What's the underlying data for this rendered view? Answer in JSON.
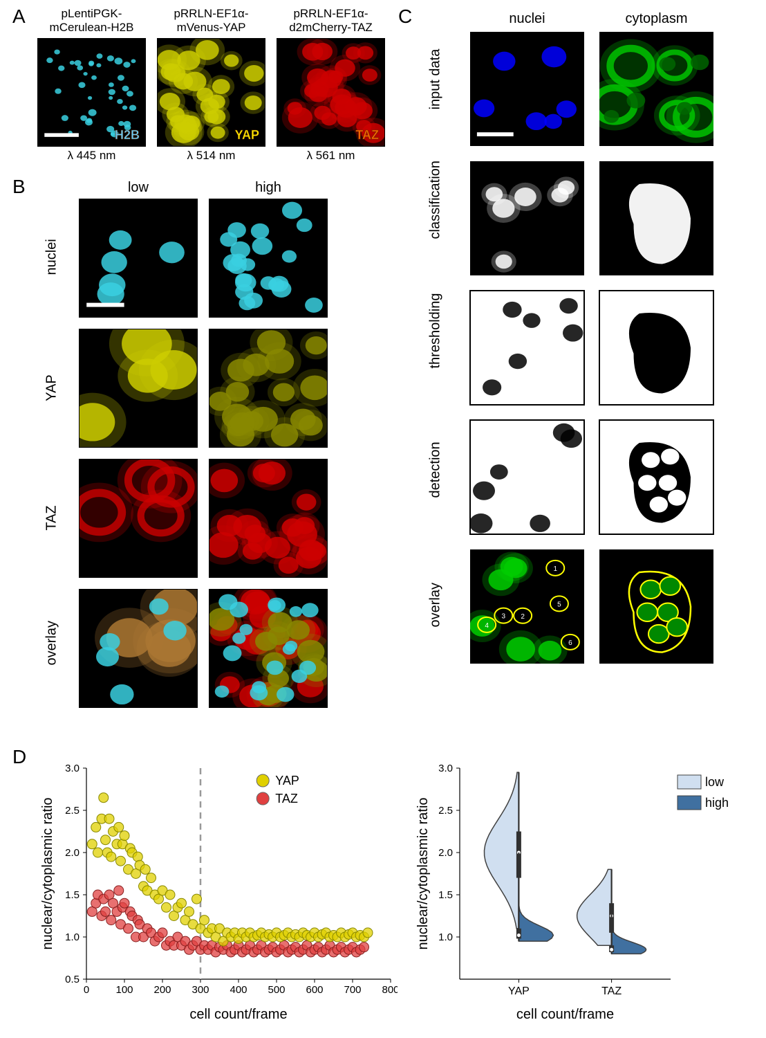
{
  "labels": {
    "A": "A",
    "B": "B",
    "C": "C",
    "D": "D"
  },
  "panelA": {
    "images": [
      {
        "title": "pLentiPGK-\nmCerulean-H2B",
        "wavelength": "λ 445 nm",
        "tag": "H2B",
        "bg": "#000000",
        "fg": "#3ad0e0",
        "type": "nuclei-sparse"
      },
      {
        "title": "pRRLN-EF1α-\nmVenus-YAP",
        "wavelength": "λ 514 nm",
        "tag": "YAP",
        "bg": "#000000",
        "fg": "#cccc00",
        "type": "cells-dense"
      },
      {
        "title": "pRRLN-EF1α-\nd2mCherry-TAZ",
        "wavelength": "λ  561 nm",
        "tag": "TAZ",
        "bg": "#000000",
        "fg": "#cc0000",
        "type": "cells-dense"
      }
    ]
  },
  "panelB": {
    "colHeaders": [
      "low",
      "high"
    ],
    "rows": [
      {
        "label": "nuclei",
        "low": {
          "bg": "#000",
          "fg": "#3ad0e0",
          "type": "nuclei-few"
        },
        "high": {
          "bg": "#000",
          "fg": "#3ad0e0",
          "type": "nuclei-many"
        }
      },
      {
        "label": "YAP",
        "low": {
          "bg": "#000",
          "fg": "#cccc00",
          "type": "cells-few"
        },
        "high": {
          "bg": "#000",
          "fg": "#888800",
          "type": "cells-many"
        }
      },
      {
        "label": "TAZ",
        "low": {
          "bg": "#000",
          "fg": "#cc0000",
          "type": "cells-few-ring"
        },
        "high": {
          "bg": "#000",
          "fg": "#cc0000",
          "type": "cells-many"
        }
      },
      {
        "label": "overlay",
        "low": {
          "bg": "#000",
          "fg": "#aa7733",
          "type": "overlay-few"
        },
        "high": {
          "bg": "#000",
          "fg": "#3ad0e0",
          "type": "overlay-many"
        }
      }
    ]
  },
  "panelC": {
    "colHeaders": [
      "nuclei",
      "cytoplasm"
    ],
    "rows": [
      {
        "label": "input data",
        "nuc": {
          "bg": "#000",
          "fg": "#0000ff",
          "type": "nuclei-blue"
        },
        "cyt": {
          "bg": "#000",
          "fg": "#00cc00",
          "type": "cyto-green"
        }
      },
      {
        "label": "classification",
        "nuc": {
          "bg": "#000",
          "fg": "#ffffff",
          "type": "nuclei-white"
        },
        "cyt": {
          "bg": "#000",
          "fg": "#ffffff",
          "type": "cyto-white"
        }
      },
      {
        "label": "thresholding",
        "nuc": {
          "bg": "#fff",
          "fg": "#000000",
          "type": "nuclei-black-on-white",
          "border": true
        },
        "cyt": {
          "bg": "#fff",
          "fg": "#000000",
          "type": "cyto-black-on-white",
          "border": true
        }
      },
      {
        "label": "detection",
        "nuc": {
          "bg": "#fff",
          "fg": "#000000",
          "type": "nuclei-black-on-white",
          "border": true
        },
        "cyt": {
          "bg": "#fff",
          "fg": "#000000",
          "type": "cyto-detection",
          "border": true
        }
      },
      {
        "label": "overlay",
        "nuc": {
          "bg": "#000",
          "fg": "#00cc00",
          "type": "overlay-nuc"
        },
        "cyt": {
          "bg": "#000",
          "fg": "#00cc00",
          "type": "overlay-cyt"
        }
      }
    ]
  },
  "panelD": {
    "scatter": {
      "xlabel": "cell count/frame",
      "ylabel": "nuclear/cytoplasmic ratio",
      "xlim": [
        0,
        800
      ],
      "ylim": [
        0.5,
        3.0
      ],
      "xticks": [
        0,
        100,
        200,
        300,
        400,
        500,
        600,
        700,
        800
      ],
      "yticks": [
        0.5,
        1.0,
        1.5,
        2.0,
        2.5,
        3.0
      ],
      "vline": 300,
      "vline_color": "#999999",
      "legend": [
        {
          "label": "YAP",
          "color": "#e0d000"
        },
        {
          "label": "TAZ",
          "color": "#e04040"
        }
      ],
      "series": {
        "YAP": {
          "color": "#e0d000",
          "edge": "#888800",
          "points": [
            [
              15,
              2.1
            ],
            [
              25,
              2.3
            ],
            [
              30,
              2.0
            ],
            [
              40,
              2.4
            ],
            [
              45,
              2.65
            ],
            [
              50,
              2.15
            ],
            [
              55,
              2.0
            ],
            [
              60,
              2.4
            ],
            [
              65,
              1.95
            ],
            [
              70,
              2.25
            ],
            [
              80,
              2.1
            ],
            [
              85,
              2.3
            ],
            [
              90,
              1.9
            ],
            [
              95,
              2.1
            ],
            [
              100,
              2.2
            ],
            [
              110,
              1.8
            ],
            [
              115,
              2.05
            ],
            [
              120,
              2.0
            ],
            [
              130,
              1.75
            ],
            [
              135,
              1.95
            ],
            [
              140,
              1.85
            ],
            [
              150,
              1.6
            ],
            [
              155,
              1.8
            ],
            [
              160,
              1.55
            ],
            [
              170,
              1.7
            ],
            [
              180,
              1.5
            ],
            [
              190,
              1.45
            ],
            [
              200,
              1.55
            ],
            [
              210,
              1.35
            ],
            [
              220,
              1.5
            ],
            [
              230,
              1.25
            ],
            [
              240,
              1.35
            ],
            [
              250,
              1.4
            ],
            [
              260,
              1.2
            ],
            [
              270,
              1.3
            ],
            [
              280,
              1.15
            ],
            [
              290,
              1.45
            ],
            [
              300,
              1.1
            ],
            [
              310,
              1.2
            ],
            [
              320,
              1.05
            ],
            [
              330,
              1.1
            ],
            [
              340,
              1.0
            ],
            [
              350,
              1.1
            ],
            [
              360,
              0.95
            ],
            [
              370,
              1.05
            ],
            [
              380,
              1.0
            ],
            [
              390,
              1.05
            ],
            [
              400,
              0.98
            ],
            [
              410,
              1.05
            ],
            [
              420,
              1.0
            ],
            [
              430,
              1.05
            ],
            [
              440,
              1.0
            ],
            [
              450,
              1.02
            ],
            [
              460,
              1.05
            ],
            [
              470,
              1.0
            ],
            [
              480,
              1.03
            ],
            [
              490,
              1.0
            ],
            [
              500,
              1.05
            ],
            [
              510,
              1.0
            ],
            [
              520,
              1.02
            ],
            [
              530,
              1.05
            ],
            [
              540,
              1.0
            ],
            [
              550,
              1.03
            ],
            [
              560,
              1.0
            ],
            [
              570,
              1.05
            ],
            [
              580,
              1.02
            ],
            [
              590,
              1.0
            ],
            [
              600,
              1.05
            ],
            [
              610,
              1.0
            ],
            [
              620,
              1.03
            ],
            [
              630,
              1.05
            ],
            [
              640,
              1.0
            ],
            [
              650,
              1.02
            ],
            [
              660,
              1.0
            ],
            [
              670,
              1.05
            ],
            [
              680,
              1.0
            ],
            [
              690,
              1.03
            ],
            [
              700,
              1.05
            ],
            [
              710,
              1.0
            ],
            [
              720,
              1.02
            ],
            [
              730,
              1.0
            ],
            [
              740,
              1.05
            ]
          ]
        },
        "TAZ": {
          "color": "#e04040",
          "edge": "#882020",
          "points": [
            [
              15,
              1.3
            ],
            [
              25,
              1.4
            ],
            [
              30,
              1.5
            ],
            [
              40,
              1.25
            ],
            [
              45,
              1.45
            ],
            [
              50,
              1.3
            ],
            [
              60,
              1.5
            ],
            [
              65,
              1.2
            ],
            [
              70,
              1.4
            ],
            [
              80,
              1.3
            ],
            [
              85,
              1.55
            ],
            [
              90,
              1.15
            ],
            [
              95,
              1.35
            ],
            [
              100,
              1.4
            ],
            [
              110,
              1.1
            ],
            [
              115,
              1.3
            ],
            [
              120,
              1.25
            ],
            [
              130,
              1.0
            ],
            [
              135,
              1.2
            ],
            [
              140,
              1.15
            ],
            [
              150,
              1.0
            ],
            [
              160,
              1.1
            ],
            [
              170,
              1.05
            ],
            [
              180,
              0.95
            ],
            [
              190,
              1.0
            ],
            [
              200,
              1.05
            ],
            [
              210,
              0.9
            ],
            [
              220,
              0.95
            ],
            [
              230,
              0.9
            ],
            [
              240,
              1.0
            ],
            [
              250,
              0.9
            ],
            [
              260,
              0.95
            ],
            [
              270,
              0.85
            ],
            [
              280,
              0.9
            ],
            [
              290,
              0.95
            ],
            [
              300,
              0.85
            ],
            [
              310,
              0.9
            ],
            [
              320,
              0.85
            ],
            [
              330,
              0.9
            ],
            [
              340,
              0.82
            ],
            [
              350,
              0.88
            ],
            [
              360,
              0.85
            ],
            [
              370,
              0.9
            ],
            [
              380,
              0.82
            ],
            [
              390,
              0.85
            ],
            [
              400,
              0.9
            ],
            [
              410,
              0.82
            ],
            [
              420,
              0.85
            ],
            [
              430,
              0.9
            ],
            [
              440,
              0.82
            ],
            [
              450,
              0.85
            ],
            [
              460,
              0.9
            ],
            [
              470,
              0.82
            ],
            [
              480,
              0.85
            ],
            [
              490,
              0.88
            ],
            [
              500,
              0.82
            ],
            [
              510,
              0.85
            ],
            [
              520,
              0.9
            ],
            [
              530,
              0.82
            ],
            [
              540,
              0.85
            ],
            [
              550,
              0.88
            ],
            [
              560,
              0.82
            ],
            [
              570,
              0.85
            ],
            [
              580,
              0.9
            ],
            [
              590,
              0.82
            ],
            [
              600,
              0.85
            ],
            [
              610,
              0.88
            ],
            [
              620,
              0.82
            ],
            [
              630,
              0.85
            ],
            [
              640,
              0.9
            ],
            [
              650,
              0.82
            ],
            [
              660,
              0.85
            ],
            [
              670,
              0.88
            ],
            [
              680,
              0.82
            ],
            [
              690,
              0.85
            ],
            [
              700,
              0.88
            ],
            [
              710,
              0.82
            ],
            [
              720,
              0.85
            ],
            [
              730,
              0.88
            ]
          ]
        }
      }
    },
    "violin": {
      "xlabel": "cell count/frame",
      "ylabel": "nuclear/cytoplasmic ratio",
      "ylim": [
        0.5,
        3.0
      ],
      "yticks": [
        1.0,
        1.5,
        2.0,
        2.5,
        3.0
      ],
      "categories": [
        "YAP",
        "TAZ"
      ],
      "legend": [
        {
          "label": "low",
          "color": "#d0dff0"
        },
        {
          "label": "high",
          "color": "#4070a0"
        }
      ],
      "colors": {
        "low": "#d0dff0",
        "high": "#4070a0",
        "edge": "#404040"
      },
      "data": {
        "YAP": {
          "low": {
            "median": 2.0,
            "q1": 1.7,
            "q3": 2.25,
            "min": 1.1,
            "max": 2.95,
            "peak": 2.0
          },
          "high": {
            "median": 1.02,
            "q1": 0.98,
            "q3": 1.1,
            "min": 0.95,
            "max": 2.0,
            "peak": 1.02
          }
        },
        "TAZ": {
          "low": {
            "median": 1.25,
            "q1": 1.05,
            "q3": 1.4,
            "min": 0.9,
            "max": 1.8,
            "peak": 1.25
          },
          "high": {
            "median": 0.85,
            "q1": 0.82,
            "q3": 0.9,
            "min": 0.8,
            "max": 1.3,
            "peak": 0.85
          }
        }
      }
    }
  },
  "style": {
    "font_axis": 18,
    "font_tick": 15,
    "font_title": 18,
    "marker_r": 7,
    "marker_opacity": 0.75
  }
}
